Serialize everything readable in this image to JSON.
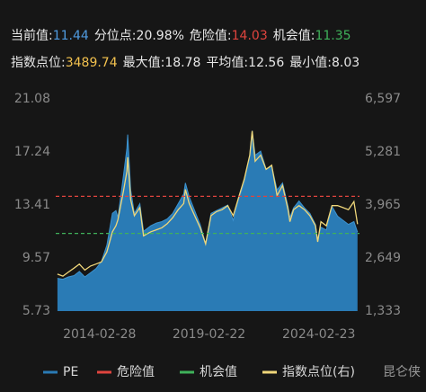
{
  "header": {
    "rows": [
      [
        {
          "label": "当前值:",
          "value": 11.44,
          "color": "#4f9be0"
        },
        {
          "label": "分位点:",
          "value": "20.98%",
          "color": "#e8e8e8"
        },
        {
          "label": "危险值:",
          "value": 14.03,
          "color": "#e0443e"
        },
        {
          "label": "机会值:",
          "value": 11.35,
          "color": "#3fb15a"
        }
      ],
      [
        {
          "label": "指数点位:",
          "value": 3489.74,
          "color": "#f2c14e"
        },
        {
          "label": "最大值:",
          "value": 18.78,
          "color": "#e8e8e8"
        },
        {
          "label": "平均值:",
          "value": 12.56,
          "color": "#e8e8e8"
        },
        {
          "label": "最小值:",
          "value": 8.03,
          "color": "#e8e8e8"
        }
      ]
    ]
  },
  "watermark": "昆仑侠",
  "chart_data": {
    "type": "area-line",
    "x": [
      "2012-03-30",
      "2012-06-29",
      "2012-09-28",
      "2012-12-31",
      "2013-03-29",
      "2013-06-28",
      "2013-09-30",
      "2013-12-31",
      "2014-03-31",
      "2014-06-30",
      "2014-09-30",
      "2014-11-28",
      "2014-12-31",
      "2015-03-31",
      "2015-05-29",
      "2015-06-12",
      "2015-07-31",
      "2015-09-30",
      "2015-12-31",
      "2016-02-29",
      "2016-06-30",
      "2016-09-30",
      "2016-12-30",
      "2017-03-31",
      "2017-06-30",
      "2017-09-29",
      "2017-12-29",
      "2018-01-26",
      "2018-03-30",
      "2018-06-29",
      "2018-09-28",
      "2018-12-28",
      "2019-03-29",
      "2019-06-28",
      "2019-09-30",
      "2019-12-31",
      "2020-03-31",
      "2020-06-30",
      "2020-09-30",
      "2020-12-31",
      "2021-02-10",
      "2021-03-31",
      "2021-06-30",
      "2021-09-30",
      "2021-12-31",
      "2022-03-31",
      "2022-06-30",
      "2022-09-30",
      "2022-10-31",
      "2022-12-30",
      "2023-03-31",
      "2023-06-30",
      "2023-09-28",
      "2023-12-29",
      "2024-02-05",
      "2024-03-29",
      "2024-06-28",
      "2024-09-30",
      "2024-12-31",
      "2025-03-31",
      "2025-06-30",
      "2025-09-30",
      "2025-11-28"
    ],
    "series": [
      {
        "name": "PE",
        "color": "#2a7bb5",
        "values": [
          8.1,
          8.03,
          8.2,
          8.3,
          8.6,
          8.2,
          8.5,
          8.8,
          9.3,
          10.5,
          12.8,
          13.0,
          12.5,
          15.5,
          17.5,
          18.5,
          14.5,
          12.8,
          13.5,
          11.5,
          11.9,
          12.1,
          12.2,
          12.4,
          12.8,
          13.5,
          14.2,
          15.0,
          14.0,
          13.0,
          12.0,
          10.6,
          12.8,
          13.0,
          13.2,
          13.4,
          12.3,
          13.8,
          15.0,
          17.0,
          18.78,
          17.0,
          17.3,
          16.0,
          16.2,
          14.5,
          15.0,
          13.3,
          12.5,
          13.2,
          13.7,
          13.2,
          12.8,
          12.0,
          10.9,
          11.8,
          11.6,
          13.3,
          12.6,
          12.3,
          12.0,
          12.2,
          11.44
        ]
      },
      {
        "name": "指数点位(右)",
        "color": "#f0d77a",
        "axis": "y2",
        "values": [
          2250,
          2200,
          2300,
          2400,
          2500,
          2350,
          2450,
          2500,
          2550,
          2800,
          3300,
          3450,
          3600,
          4300,
          4800,
          5150,
          4100,
          3700,
          3900,
          3200,
          3300,
          3350,
          3400,
          3500,
          3650,
          3850,
          4000,
          4350,
          4000,
          3700,
          3400,
          3000,
          3700,
          3800,
          3850,
          3950,
          3700,
          4150,
          4600,
          5200,
          5800,
          5050,
          5200,
          4850,
          4950,
          4200,
          4450,
          3850,
          3550,
          3850,
          3950,
          3850,
          3700,
          3450,
          3050,
          3550,
          3450,
          3950,
          3950,
          3900,
          3850,
          4050,
          3489.74
        ]
      }
    ],
    "reference_lines": [
      {
        "name": "危险值",
        "value": 14.03,
        "color": "#e0443e"
      },
      {
        "name": "机会值",
        "value": 11.35,
        "color": "#3fb15a"
      }
    ],
    "xlim": [
      "2012-03-01",
      "2025-12-31"
    ],
    "xticks": [
      "2014-02-28",
      "2019-02-22",
      "2024-02-23"
    ],
    "ylim": [
      5.73,
      21.08
    ],
    "yticks": [
      5.73,
      9.57,
      13.41,
      17.24,
      21.08
    ],
    "y2lim": [
      1333,
      6597
    ],
    "y2ticks": [
      {
        "value": 1333,
        "label": "1,333"
      },
      {
        "value": 2649,
        "label": "2,649"
      },
      {
        "value": 3965,
        "label": "3,965"
      },
      {
        "value": 5281,
        "label": "5,281"
      },
      {
        "value": 6597,
        "label": "6,597"
      }
    ],
    "grid": false
  }
}
